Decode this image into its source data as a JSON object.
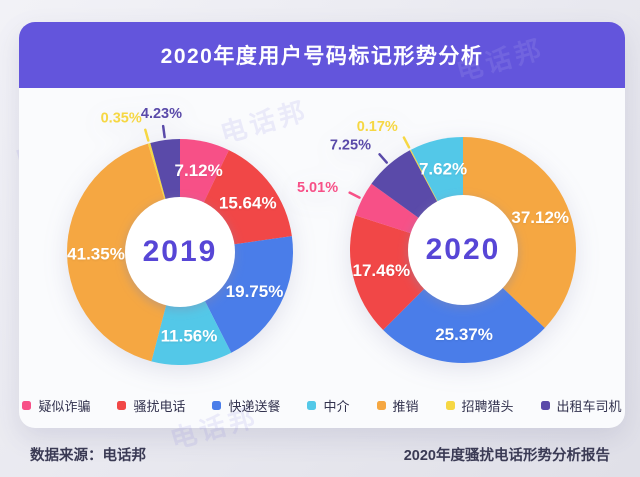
{
  "header": {
    "title": "2020年度用户号码标记形势分析"
  },
  "watermark": "电话邦",
  "footer": {
    "source": "数据来源：电话邦",
    "report": "2020年度骚扰电话形势分析报告"
  },
  "accent_colors": {
    "banner": "#6355DC",
    "year_text": "#5746D6",
    "card_bg": "#FAFBFD"
  },
  "chart_data": {
    "type": "pie",
    "title": "2020年度用户号码标记形势分析",
    "unit": "%",
    "legend_position": "bottom",
    "legend": [
      "疑似诈骗",
      "骚扰电话",
      "快递送餐",
      "中介",
      "推销",
      "招聘猎头",
      "出租车司机"
    ],
    "colors": {
      "疑似诈骗": "#F75087",
      "骚扰电话": "#F14747",
      "快递送餐": "#4A7DE9",
      "中介": "#53C8E8",
      "推销": "#F5A742",
      "招聘猎头": "#F6D743",
      "出租车司机": "#5A4AA9"
    },
    "charts": [
      {
        "center_label": "2019",
        "slices": [
          {
            "label": "疑似诈骗",
            "value": 7.12,
            "label_outside": false
          },
          {
            "label": "骚扰电话",
            "value": 15.64,
            "label_outside": false
          },
          {
            "label": "快递送餐",
            "value": 19.75,
            "label_outside": false
          },
          {
            "label": "中介",
            "value": 11.56,
            "label_outside": false
          },
          {
            "label": "推销",
            "value": 41.35,
            "label_outside": false
          },
          {
            "label": "招聘猎头",
            "value": 0.35,
            "label_outside": true
          },
          {
            "label": "出租车司机",
            "value": 4.23,
            "label_outside": true
          }
        ]
      },
      {
        "center_label": "2020",
        "slices": [
          {
            "label": "推销",
            "value": 37.12,
            "label_outside": false
          },
          {
            "label": "快递送餐",
            "value": 25.37,
            "label_outside": false
          },
          {
            "label": "骚扰电话",
            "value": 17.46,
            "label_outside": false
          },
          {
            "label": "疑似诈骗",
            "value": 5.01,
            "label_outside": true
          },
          {
            "label": "出租车司机",
            "value": 7.25,
            "label_outside": true
          },
          {
            "label": "招聘猎头",
            "value": 0.17,
            "label_outside": true
          },
          {
            "label": "中介",
            "value": 7.62,
            "label_outside": false
          }
        ]
      }
    ]
  }
}
